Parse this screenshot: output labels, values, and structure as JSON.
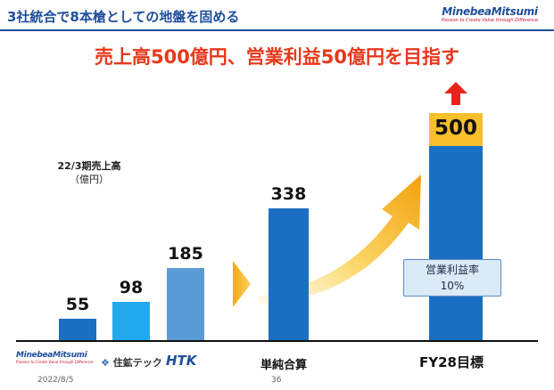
{
  "header": {
    "title": "3社統合で8本槍としての地盤を固める",
    "brand": {
      "name": "MinebeaMitsumi",
      "tagline": "Passion to Create Value through Difference"
    }
  },
  "headline": "売上高500億円、営業利益50億円を目指す",
  "chart_caption": {
    "line1": "22/3期売上高",
    "line2": "（億円）"
  },
  "chart_data": {
    "type": "bar",
    "categories": [
      "MinebeaMitsumi",
      "住鉱テック",
      "HTK",
      "単純合算",
      "FY28目標"
    ],
    "values": [
      55,
      98,
      185,
      338,
      500
    ],
    "value_labels": [
      "55",
      "98",
      "185",
      "338",
      "500"
    ],
    "ylim": [
      0,
      520
    ],
    "colors": [
      "#1b6fc2",
      "#22aaee",
      "#5b9bd5",
      "#1b6fc2",
      "#1b6fc2"
    ]
  },
  "categories_display": {
    "sumitomo": "住鉱テック",
    "htk": "HTK",
    "combined": "単純合算",
    "target": "FY28目標"
  },
  "callout": {
    "label": "営業利益率",
    "value": "10%"
  },
  "colors": {
    "brand_blue": "#1f4e9c",
    "headline_red": "#e8381b",
    "bar_blue": "#1b6fc2",
    "gold": "#f7c02a"
  },
  "footer": {
    "date": "2022/8/5",
    "page": "36"
  }
}
